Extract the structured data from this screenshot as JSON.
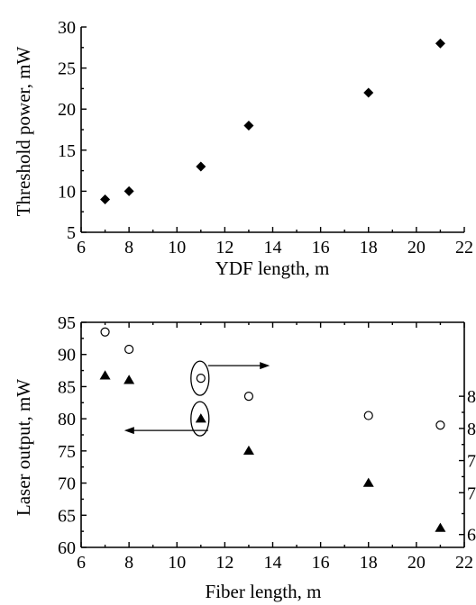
{
  "chart_data": [
    {
      "type": "scatter",
      "title": "",
      "xlabel": "YDF length, m",
      "ylabel": "Threshold power, mW",
      "xlim": [
        6,
        22
      ],
      "ylim": [
        5,
        30
      ],
      "xticks": [
        6,
        8,
        10,
        12,
        14,
        16,
        18,
        20,
        22
      ],
      "yticks": [
        5,
        10,
        15,
        20,
        25,
        30
      ],
      "grid": false,
      "series": [
        {
          "marker": "diamond",
          "x": [
            7,
            8,
            11,
            13,
            18,
            21
          ],
          "y": [
            9,
            10,
            13,
            18,
            22,
            28
          ]
        }
      ]
    },
    {
      "type": "scatter",
      "title": "",
      "xlabel": "Fiber length, m",
      "ylabel": "Laser output, mW",
      "xlim": [
        6,
        22
      ],
      "ylim": [
        60,
        95
      ],
      "xticks": [
        6,
        8,
        10,
        12,
        14,
        16,
        18,
        20,
        22
      ],
      "yticks": [
        60,
        65,
        70,
        75,
        80,
        85,
        90,
        95
      ],
      "right_tick_labels": [
        "8",
        "8",
        "7",
        "7",
        "6"
      ],
      "grid": false,
      "series": [
        {
          "marker": "triangle",
          "axis": "left",
          "x": [
            7,
            8,
            11,
            13,
            18,
            21
          ],
          "y": [
            86.7,
            86,
            80,
            75,
            70,
            63
          ]
        },
        {
          "marker": "open-circle",
          "axis": "right",
          "x": [
            7,
            8,
            11,
            13,
            18,
            21
          ],
          "y_plotted_on_left_scale": [
            93.5,
            90.8,
            86.3,
            83.5,
            80.5,
            79
          ]
        }
      ],
      "annotations": [
        {
          "marker": "open-circle",
          "direction": "right"
        },
        {
          "marker": "triangle",
          "direction": "left"
        }
      ]
    }
  ]
}
